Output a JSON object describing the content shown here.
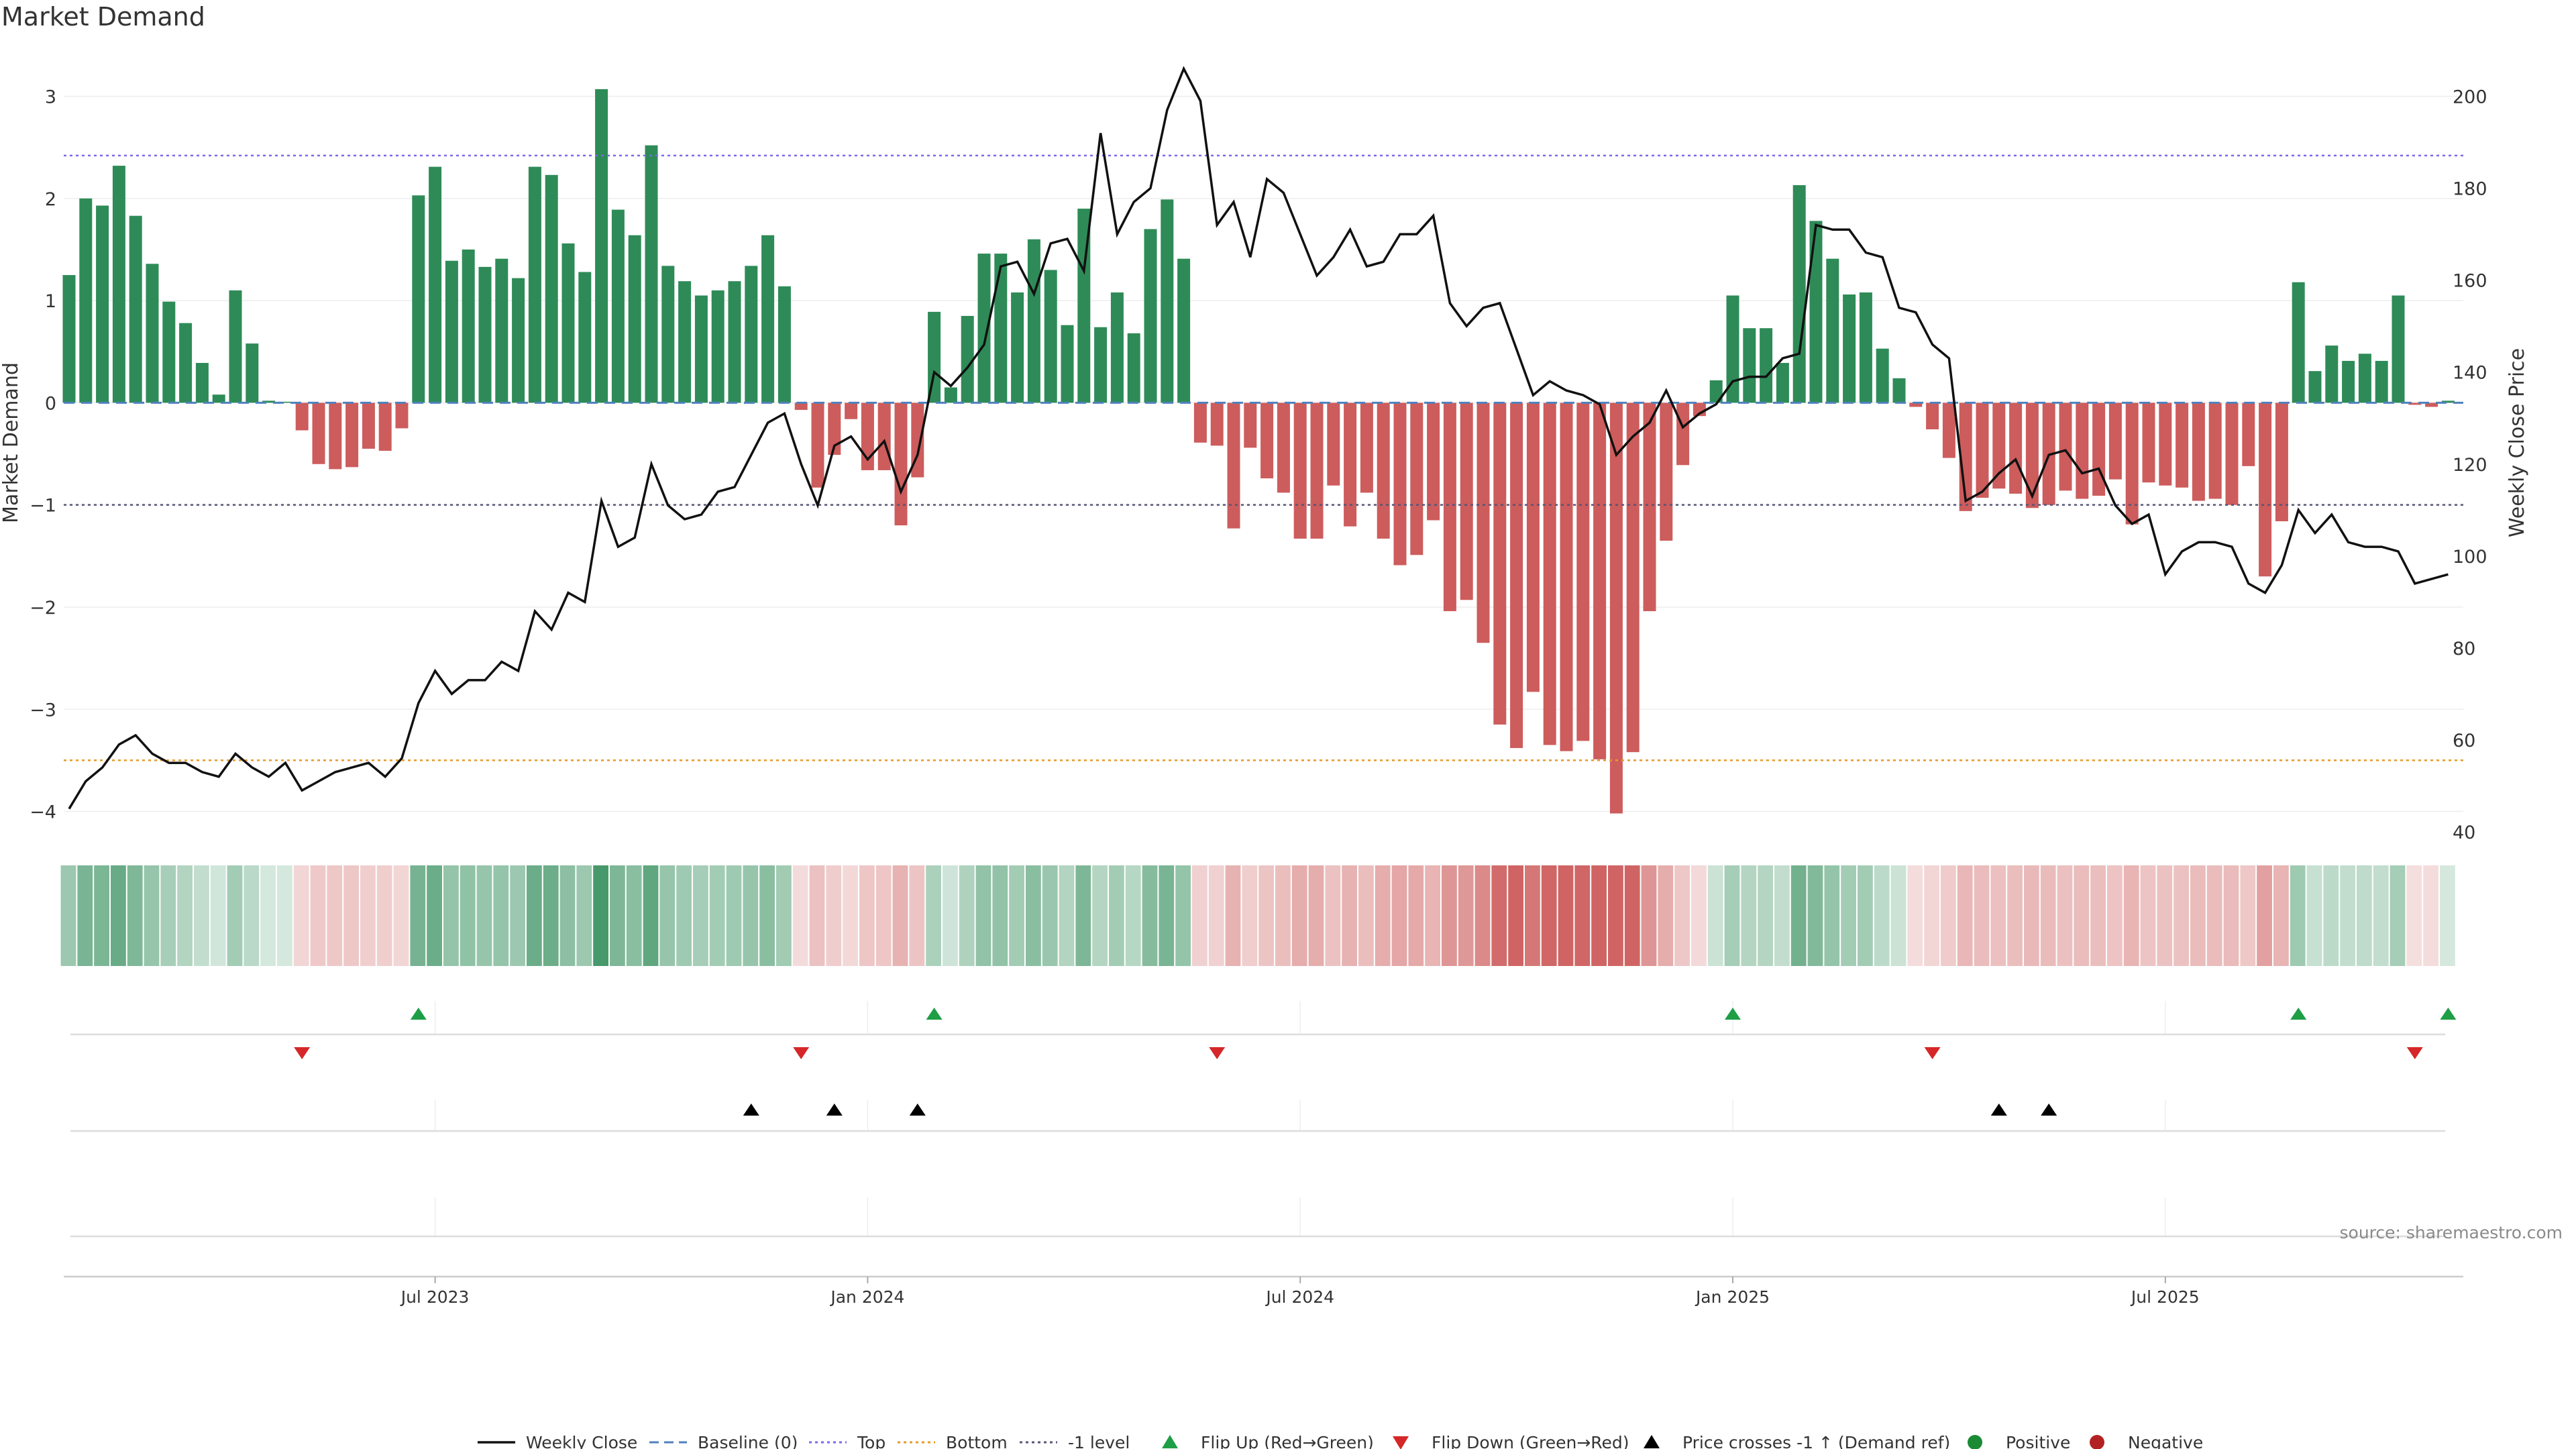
{
  "chart_data": {
    "type": "bar",
    "title": "Market Demand",
    "ylabel": "Market Demand",
    "y2label": "Weekly Close Price",
    "ylim": [
      -4.2,
      3.45
    ],
    "y2lim": [
      40,
      210
    ],
    "yticks": [
      "−4",
      "−3",
      "−2",
      "−1",
      "0",
      "1",
      "2",
      "3"
    ],
    "y2ticks": [
      "40",
      "60",
      "80",
      "100",
      "120",
      "140",
      "160",
      "180",
      "200"
    ],
    "xticks": [
      "Jul 2023",
      "Jan 2024",
      "Jul 2024",
      "Jan 2025",
      "Jul 2025"
    ],
    "xtick_index": [
      22,
      48,
      74,
      100,
      126
    ],
    "levels": {
      "baseline": 0,
      "top": 2.42,
      "bottom": -3.5,
      "minus_one": -1
    },
    "colors": {
      "positive": "#2e8b57",
      "negative": "#cd5c5c",
      "price": "#111111",
      "baseline": "#4f81bd",
      "top": "#7b68ee",
      "bottom": "#e69a28",
      "minus_one": "#555577",
      "flip_up": "#1e9e45",
      "flip_down": "#d62728",
      "cross": "#000000",
      "pos_dot": "#1a8a34",
      "neg_dot": "#b22222"
    },
    "demand": [
      1.25,
      2.0,
      1.93,
      2.32,
      1.83,
      1.36,
      0.99,
      0.78,
      0.39,
      0.08,
      1.1,
      0.58,
      0.02,
      0.01,
      -0.27,
      -0.6,
      -0.65,
      -0.63,
      -0.45,
      -0.47,
      -0.25,
      2.03,
      2.31,
      1.39,
      1.5,
      1.33,
      1.41,
      1.22,
      2.31,
      2.23,
      1.56,
      1.28,
      3.07,
      1.89,
      1.64,
      2.52,
      1.34,
      1.19,
      1.05,
      1.1,
      1.19,
      1.34,
      1.64,
      1.14,
      -0.07,
      -0.83,
      -0.51,
      -0.16,
      -0.66,
      -0.66,
      -1.2,
      -0.73,
      0.89,
      0.15,
      0.85,
      1.46,
      1.46,
      1.08,
      1.6,
      1.3,
      0.76,
      1.9,
      0.74,
      1.08,
      0.68,
      1.7,
      1.99,
      1.41,
      -0.39,
      -0.42,
      -1.23,
      -0.44,
      -0.74,
      -0.88,
      -1.33,
      -1.33,
      -0.81,
      -1.21,
      -0.88,
      -1.33,
      -1.59,
      -1.49,
      -1.15,
      -2.04,
      -1.93,
      -2.35,
      -3.15,
      -3.38,
      -2.83,
      -3.35,
      -3.41,
      -3.31,
      -3.49,
      -4.02,
      -3.42,
      -2.04,
      -1.35,
      -0.61,
      -0.13,
      0.22,
      1.05,
      0.73,
      0.73,
      0.39,
      2.13,
      1.78,
      1.41,
      1.06,
      1.08,
      0.53,
      0.24,
      -0.04,
      -0.26,
      -0.54,
      -1.06,
      -0.93,
      -0.84,
      -0.89,
      -1.03,
      -1.0,
      -0.86,
      -0.94,
      -0.91,
      -0.75,
      -1.19,
      -0.78,
      -0.81,
      -0.83,
      -0.96,
      -0.94,
      -1.0,
      -0.62,
      -1.7,
      -1.16,
      1.18,
      0.31,
      0.56,
      0.41,
      0.48,
      0.41,
      1.05,
      -0.02,
      -0.04,
      0.02
    ],
    "price": [
      45,
      51,
      54,
      59,
      61,
      57,
      55,
      55,
      53,
      52,
      57,
      54,
      52,
      55,
      49,
      51,
      53,
      54,
      55,
      52,
      56,
      68,
      75,
      70,
      73,
      73,
      77,
      75,
      88,
      84,
      92,
      90,
      112,
      102,
      104,
      120,
      111,
      108,
      109,
      114,
      115,
      122,
      129,
      131,
      120,
      111,
      124,
      126,
      121,
      125,
      114,
      122,
      140,
      137,
      141,
      146,
      163,
      164,
      157,
      168,
      169,
      162,
      192,
      170,
      177,
      180,
      197,
      206,
      199,
      172,
      177,
      165,
      182,
      179,
      170,
      161,
      165,
      171,
      163,
      164,
      170,
      170,
      174,
      155,
      150,
      154,
      155,
      145,
      135,
      138,
      136,
      135,
      133,
      122,
      126,
      129,
      136,
      128,
      131,
      133,
      138,
      139,
      139,
      143,
      144,
      172,
      171,
      171,
      166,
      165,
      154,
      153,
      146,
      143,
      112,
      114,
      118,
      121,
      113,
      122,
      123,
      118,
      119,
      111,
      107,
      109,
      96,
      101,
      103,
      103,
      102,
      94,
      92,
      98,
      110,
      105,
      109,
      103,
      102,
      102,
      101,
      94,
      95,
      96
    ],
    "flip_up_index": [
      21,
      52,
      100,
      134,
      143
    ],
    "flip_down_index": [
      14,
      44,
      69,
      112,
      141
    ],
    "cross_index": [
      41,
      46,
      51,
      116,
      119
    ],
    "legend": [
      "Weekly Close",
      "Baseline (0)",
      "Top",
      "Bottom",
      "-1 level",
      "Flip Up (Red→Green)",
      "Flip Down (Green→Red)",
      "Price crosses -1 ↑ (Demand ref)",
      "Positive",
      "Negative"
    ],
    "legend_position": "bottom-center"
  },
  "source": "source: sharemaestro.com"
}
